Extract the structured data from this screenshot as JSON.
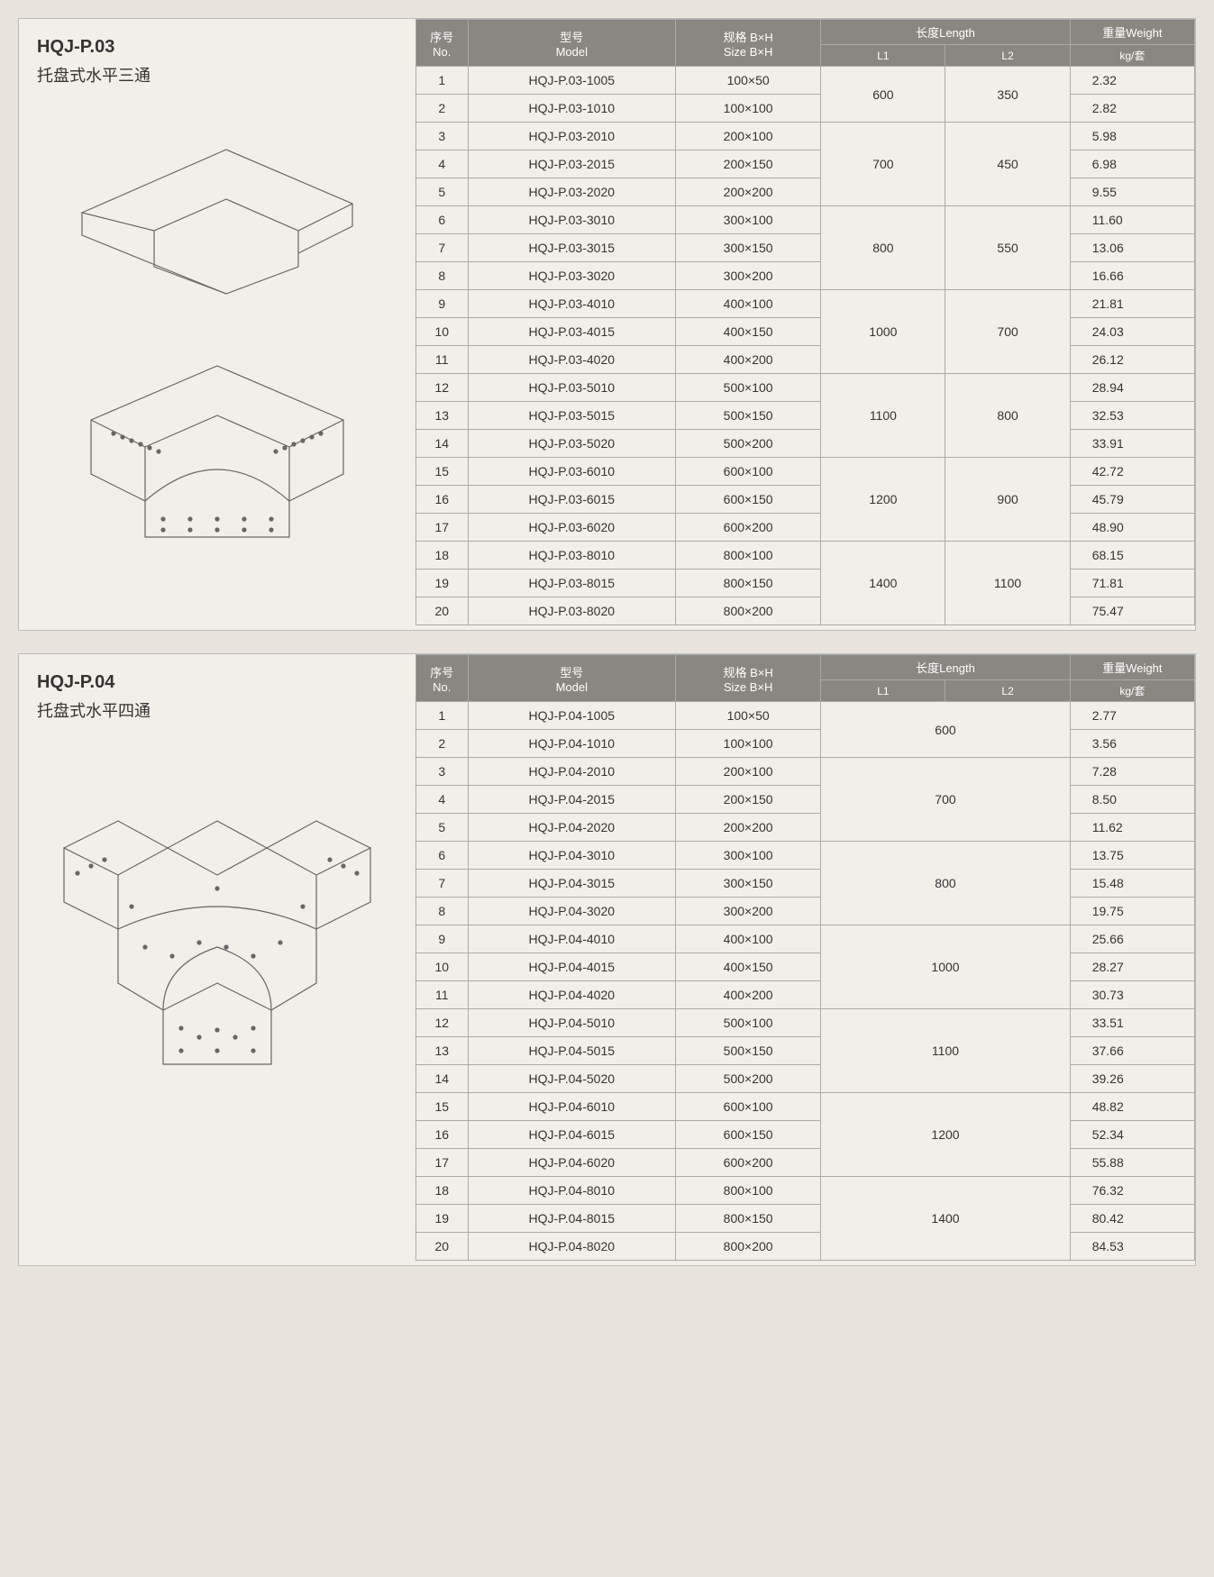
{
  "header": {
    "no": "序号\nNo.",
    "model": "型号\nModel",
    "size": "规格 B×H\nSize B×H",
    "length": "长度Length",
    "l1": "L1",
    "l2": "L2",
    "weight": "重量Weight",
    "weight_unit": "kg/套"
  },
  "colors": {
    "bg": "#e8e4dc",
    "panel": "#f2efe8",
    "header_bg": "#8a8680",
    "header_fg": "#ffffff",
    "border": "#aaaaaa",
    "text": "#333333"
  },
  "sections": [
    {
      "code": "HQJ-P.03",
      "name": "托盘式水平三通",
      "diagram_type": "tee",
      "length_groups": [
        {
          "l1": "600",
          "l2": "350",
          "span": 2,
          "start": 1
        },
        {
          "l1": "700",
          "l2": "450",
          "span": 3,
          "start": 3
        },
        {
          "l1": "800",
          "l2": "550",
          "span": 3,
          "start": 6
        },
        {
          "l1": "1000",
          "l2": "700",
          "span": 3,
          "start": 9
        },
        {
          "l1": "1100",
          "l2": "800",
          "span": 3,
          "start": 12
        },
        {
          "l1": "1200",
          "l2": "900",
          "span": 3,
          "start": 15
        },
        {
          "l1": "1400",
          "l2": "1100",
          "span": 3,
          "start": 18
        }
      ],
      "rows": [
        {
          "no": 1,
          "model": "HQJ-P.03-1005",
          "size": "100×50",
          "weight": "2.32"
        },
        {
          "no": 2,
          "model": "HQJ-P.03-1010",
          "size": "100×100",
          "weight": "2.82"
        },
        {
          "no": 3,
          "model": "HQJ-P.03-2010",
          "size": "200×100",
          "weight": "5.98"
        },
        {
          "no": 4,
          "model": "HQJ-P.03-2015",
          "size": "200×150",
          "weight": "6.98"
        },
        {
          "no": 5,
          "model": "HQJ-P.03-2020",
          "size": "200×200",
          "weight": "9.55"
        },
        {
          "no": 6,
          "model": "HQJ-P.03-3010",
          "size": "300×100",
          "weight": "11.60"
        },
        {
          "no": 7,
          "model": "HQJ-P.03-3015",
          "size": "300×150",
          "weight": "13.06"
        },
        {
          "no": 8,
          "model": "HQJ-P.03-3020",
          "size": "300×200",
          "weight": "16.66"
        },
        {
          "no": 9,
          "model": "HQJ-P.03-4010",
          "size": "400×100",
          "weight": "21.81"
        },
        {
          "no": 10,
          "model": "HQJ-P.03-4015",
          "size": "400×150",
          "weight": "24.03"
        },
        {
          "no": 11,
          "model": "HQJ-P.03-4020",
          "size": "400×200",
          "weight": "26.12"
        },
        {
          "no": 12,
          "model": "HQJ-P.03-5010",
          "size": "500×100",
          "weight": "28.94"
        },
        {
          "no": 13,
          "model": "HQJ-P.03-5015",
          "size": "500×150",
          "weight": "32.53"
        },
        {
          "no": 14,
          "model": "HQJ-P.03-5020",
          "size": "500×200",
          "weight": "33.91"
        },
        {
          "no": 15,
          "model": "HQJ-P.03-6010",
          "size": "600×100",
          "weight": "42.72"
        },
        {
          "no": 16,
          "model": "HQJ-P.03-6015",
          "size": "600×150",
          "weight": "45.79"
        },
        {
          "no": 17,
          "model": "HQJ-P.03-6020",
          "size": "600×200",
          "weight": "48.90"
        },
        {
          "no": 18,
          "model": "HQJ-P.03-8010",
          "size": "800×100",
          "weight": "68.15"
        },
        {
          "no": 19,
          "model": "HQJ-P.03-8015",
          "size": "800×150",
          "weight": "71.81"
        },
        {
          "no": 20,
          "model": "HQJ-P.03-8020",
          "size": "800×200",
          "weight": "75.47"
        }
      ]
    },
    {
      "code": "HQJ-P.04",
      "name": "托盘式水平四通",
      "diagram_type": "cross",
      "length_groups": [
        {
          "l1": "600",
          "l2": "",
          "span": 2,
          "start": 1,
          "merged": true
        },
        {
          "l1": "700",
          "l2": "",
          "span": 3,
          "start": 3,
          "merged": true
        },
        {
          "l1": "800",
          "l2": "",
          "span": 3,
          "start": 6,
          "merged": true
        },
        {
          "l1": "1000",
          "l2": "",
          "span": 3,
          "start": 9,
          "merged": true
        },
        {
          "l1": "1100",
          "l2": "",
          "span": 3,
          "start": 12,
          "merged": true
        },
        {
          "l1": "1200",
          "l2": "",
          "span": 3,
          "start": 15,
          "merged": true
        },
        {
          "l1": "1400",
          "l2": "",
          "span": 3,
          "start": 18,
          "merged": true
        }
      ],
      "rows": [
        {
          "no": 1,
          "model": "HQJ-P.04-1005",
          "size": "100×50",
          "weight": "2.77"
        },
        {
          "no": 2,
          "model": "HQJ-P.04-1010",
          "size": "100×100",
          "weight": "3.56"
        },
        {
          "no": 3,
          "model": "HQJ-P.04-2010",
          "size": "200×100",
          "weight": "7.28"
        },
        {
          "no": 4,
          "model": "HQJ-P.04-2015",
          "size": "200×150",
          "weight": "8.50"
        },
        {
          "no": 5,
          "model": "HQJ-P.04-2020",
          "size": "200×200",
          "weight": "11.62"
        },
        {
          "no": 6,
          "model": "HQJ-P.04-3010",
          "size": "300×100",
          "weight": "13.75"
        },
        {
          "no": 7,
          "model": "HQJ-P.04-3015",
          "size": "300×150",
          "weight": "15.48"
        },
        {
          "no": 8,
          "model": "HQJ-P.04-3020",
          "size": "300×200",
          "weight": "19.75"
        },
        {
          "no": 9,
          "model": "HQJ-P.04-4010",
          "size": "400×100",
          "weight": "25.66"
        },
        {
          "no": 10,
          "model": "HQJ-P.04-4015",
          "size": "400×150",
          "weight": "28.27"
        },
        {
          "no": 11,
          "model": "HQJ-P.04-4020",
          "size": "400×200",
          "weight": "30.73"
        },
        {
          "no": 12,
          "model": "HQJ-P.04-5010",
          "size": "500×100",
          "weight": "33.51"
        },
        {
          "no": 13,
          "model": "HQJ-P.04-5015",
          "size": "500×150",
          "weight": "37.66"
        },
        {
          "no": 14,
          "model": "HQJ-P.04-5020",
          "size": "500×200",
          "weight": "39.26"
        },
        {
          "no": 15,
          "model": "HQJ-P.04-6010",
          "size": "600×100",
          "weight": "48.82"
        },
        {
          "no": 16,
          "model": "HQJ-P.04-6015",
          "size": "600×150",
          "weight": "52.34"
        },
        {
          "no": 17,
          "model": "HQJ-P.04-6020",
          "size": "600×200",
          "weight": "55.88"
        },
        {
          "no": 18,
          "model": "HQJ-P.04-8010",
          "size": "800×100",
          "weight": "76.32"
        },
        {
          "no": 19,
          "model": "HQJ-P.04-8015",
          "size": "800×150",
          "weight": "80.42"
        },
        {
          "no": 20,
          "model": "HQJ-P.04-8020",
          "size": "800×200",
          "weight": "84.53"
        }
      ]
    }
  ]
}
